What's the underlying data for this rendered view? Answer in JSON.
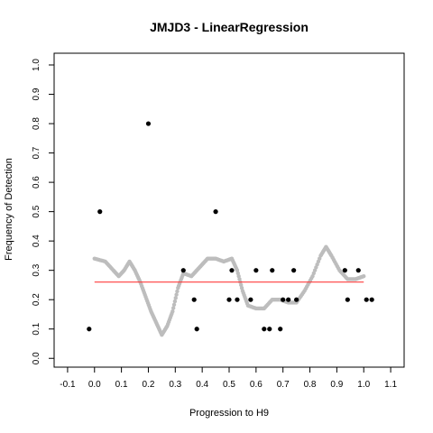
{
  "chart_data": {
    "type": "scatter",
    "title": "JMJD3 - LinearRegression",
    "xlabel": "Progression to H9",
    "ylabel": "Frequency of Detection",
    "xlim": [
      -0.15,
      1.15
    ],
    "ylim": [
      -0.03,
      1.04
    ],
    "xticks": [
      "-0.1",
      "0.0",
      "0.1",
      "0.2",
      "0.3",
      "0.4",
      "0.5",
      "0.6",
      "0.7",
      "0.8",
      "0.9",
      "1.0",
      "1.1"
    ],
    "yticks": [
      "0.0",
      "0.1",
      "0.2",
      "0.3",
      "0.4",
      "0.5",
      "0.6",
      "0.7",
      "0.8",
      "0.9",
      "1.0"
    ],
    "grid": false,
    "legend": "none",
    "colors": {
      "observed": "#000000",
      "smoothed": "#bdbdbd",
      "regression": "#ff3b3b",
      "frame": "#000000"
    },
    "observed_points": [
      [
        -0.02,
        0.1
      ],
      [
        0.02,
        0.5
      ],
      [
        0.2,
        0.8
      ],
      [
        0.33,
        0.3
      ],
      [
        0.37,
        0.2
      ],
      [
        0.38,
        0.1
      ],
      [
        0.45,
        0.5
      ],
      [
        0.5,
        0.2
      ],
      [
        0.51,
        0.3
      ],
      [
        0.53,
        0.2
      ],
      [
        0.58,
        0.2
      ],
      [
        0.6,
        0.3
      ],
      [
        0.63,
        0.1
      ],
      [
        0.65,
        0.1
      ],
      [
        0.66,
        0.3
      ],
      [
        0.69,
        0.1
      ],
      [
        0.7,
        0.2
      ],
      [
        0.72,
        0.2
      ],
      [
        0.74,
        0.3
      ],
      [
        0.75,
        0.2
      ],
      [
        0.93,
        0.3
      ],
      [
        0.94,
        0.2
      ],
      [
        0.98,
        0.3
      ],
      [
        1.01,
        0.2
      ],
      [
        1.03,
        0.2
      ]
    ],
    "smoothed_curve": [
      [
        0.0,
        0.34
      ],
      [
        0.04,
        0.33
      ],
      [
        0.07,
        0.3
      ],
      [
        0.09,
        0.28
      ],
      [
        0.11,
        0.3
      ],
      [
        0.13,
        0.33
      ],
      [
        0.15,
        0.3
      ],
      [
        0.17,
        0.26
      ],
      [
        0.19,
        0.21
      ],
      [
        0.21,
        0.16
      ],
      [
        0.23,
        0.12
      ],
      [
        0.25,
        0.08
      ],
      [
        0.27,
        0.11
      ],
      [
        0.29,
        0.16
      ],
      [
        0.31,
        0.24
      ],
      [
        0.33,
        0.29
      ],
      [
        0.36,
        0.28
      ],
      [
        0.38,
        0.3
      ],
      [
        0.4,
        0.32
      ],
      [
        0.42,
        0.34
      ],
      [
        0.45,
        0.34
      ],
      [
        0.48,
        0.33
      ],
      [
        0.51,
        0.34
      ],
      [
        0.53,
        0.3
      ],
      [
        0.55,
        0.23
      ],
      [
        0.57,
        0.18
      ],
      [
        0.6,
        0.17
      ],
      [
        0.63,
        0.17
      ],
      [
        0.66,
        0.2
      ],
      [
        0.69,
        0.2
      ],
      [
        0.72,
        0.19
      ],
      [
        0.75,
        0.19
      ],
      [
        0.78,
        0.23
      ],
      [
        0.81,
        0.28
      ],
      [
        0.84,
        0.35
      ],
      [
        0.86,
        0.38
      ],
      [
        0.88,
        0.35
      ],
      [
        0.91,
        0.3
      ],
      [
        0.94,
        0.27
      ],
      [
        0.97,
        0.27
      ],
      [
        1.0,
        0.28
      ]
    ],
    "regression_line": [
      [
        0.0,
        0.26
      ],
      [
        1.0,
        0.26
      ]
    ]
  }
}
